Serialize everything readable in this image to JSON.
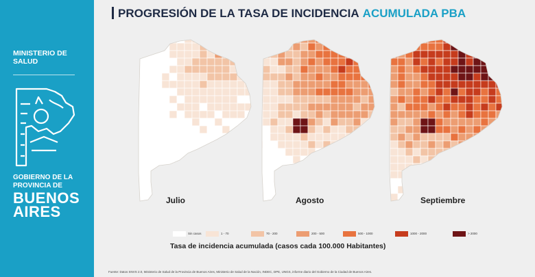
{
  "sidebar": {
    "ministry": "MINISTERIO DE SALUD",
    "government": "GOBIERNO DE LA PROVINCIA DE",
    "province": "BUENOS AIRES"
  },
  "title": {
    "part1": "PROGRESIÓN DE LA TASA DE INCIDENCIA",
    "part2": "ACUMULADA PBA"
  },
  "maps": [
    {
      "month": "Julio",
      "level": 0
    },
    {
      "month": "Agosto",
      "level": 1
    },
    {
      "month": "Septiembre",
      "level": 2
    }
  ],
  "legend": [
    {
      "label": "Sin casos",
      "color": "#ffffff"
    },
    {
      "label": "1 - 70",
      "color": "#f8e4d6"
    },
    {
      "label": "70 - 200",
      "color": "#f2c4a6"
    },
    {
      "label": "200 - 500",
      "color": "#ec9d72"
    },
    {
      "label": "500 - 1000",
      "color": "#e8733f"
    },
    {
      "label": "1000 - 2000",
      "color": "#c63c1d"
    },
    {
      "label": "> 2000",
      "color": "#6e1416"
    }
  ],
  "caption": "Tasa de incidencia acumulada (casos cada 100.000 Habitantes)",
  "source": "Fuente: Datos SNVS 2.0, Ministerio de Salud de la Provincia de Buenos Aires, Ministerio de Salud de la Nación, INDEC, DPE, UNGS, informe diario del Gobierno de la Ciudad de Buenos Aires."
}
